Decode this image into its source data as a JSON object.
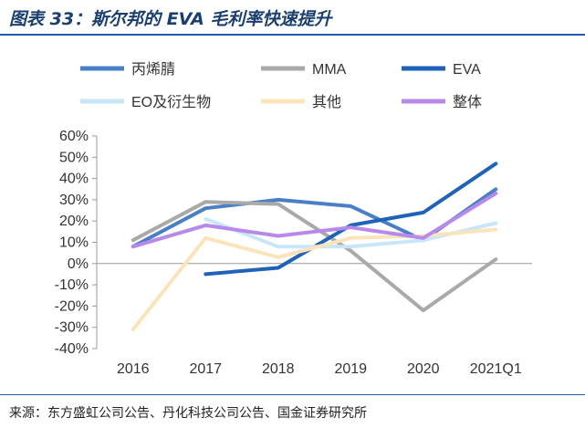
{
  "title": "图表 33：斯尔邦的 EVA 毛利率快速提升",
  "source": "来源：东方盛虹公司公告、丹化科技公司公告、国金证券研究所",
  "chart_data": {
    "type": "line",
    "categories": [
      "2016",
      "2017",
      "2018",
      "2019",
      "2020",
      "2021Q1"
    ],
    "ylim": [
      -0.4,
      0.6
    ],
    "yticks": [
      "60%",
      "50%",
      "40%",
      "30%",
      "20%",
      "10%",
      "0%",
      "-10%",
      "-20%",
      "-30%",
      "-40%"
    ],
    "ytick_values": [
      0.6,
      0.5,
      0.4,
      0.3,
      0.2,
      0.1,
      0.0,
      -0.1,
      -0.2,
      -0.3,
      -0.4
    ],
    "grid": false,
    "legend_position": "top",
    "series": [
      {
        "name": "丙烯腈",
        "color": "#4a7fc8",
        "values": [
          0.08,
          0.26,
          0.3,
          0.27,
          0.11,
          0.35
        ]
      },
      {
        "name": "MMA",
        "color": "#a9a9a9",
        "values": [
          0.11,
          0.29,
          0.28,
          0.06,
          -0.22,
          0.02
        ]
      },
      {
        "name": "EVA",
        "color": "#1f63b8",
        "values": [
          null,
          -0.05,
          -0.02,
          0.18,
          0.24,
          0.47
        ]
      },
      {
        "name": "EO及衍生物",
        "color": "#c9e6f8",
        "values": [
          null,
          0.21,
          0.08,
          0.08,
          0.11,
          0.19
        ]
      },
      {
        "name": "其他",
        "color": "#fbe3bb",
        "values": [
          -0.31,
          0.12,
          0.03,
          0.12,
          0.13,
          0.16
        ]
      },
      {
        "name": "整体",
        "color": "#b789ea",
        "values": [
          0.08,
          0.18,
          0.13,
          0.17,
          0.12,
          0.33
        ]
      }
    ]
  }
}
